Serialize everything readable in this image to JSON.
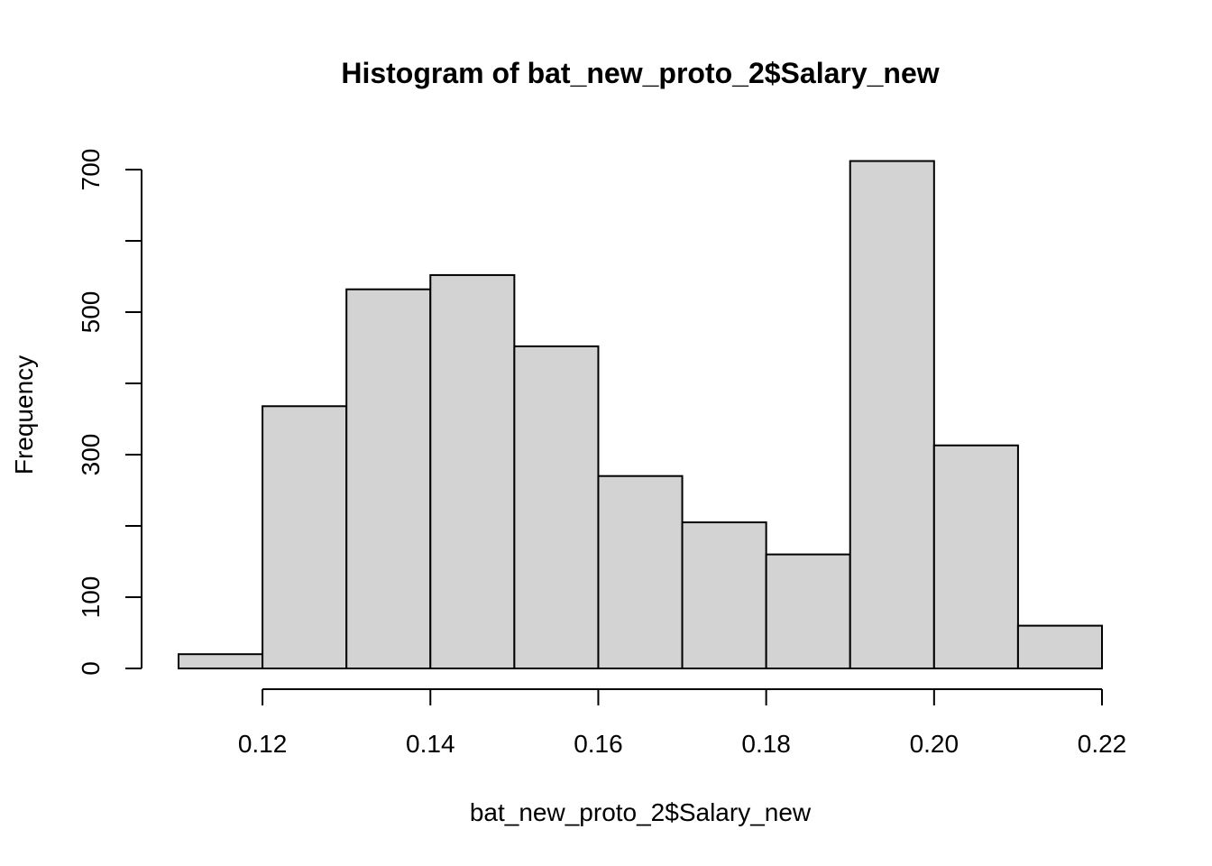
{
  "chart_data": {
    "type": "bar",
    "title": "Histogram of bat_new_proto_2$Salary_new",
    "xlabel": "bat_new_proto_2$Salary_new",
    "ylabel": "Frequency",
    "bins": [
      {
        "from": 0.11,
        "to": 0.12,
        "count": 20
      },
      {
        "from": 0.12,
        "to": 0.13,
        "count": 368
      },
      {
        "from": 0.13,
        "to": 0.14,
        "count": 532
      },
      {
        "from": 0.14,
        "to": 0.15,
        "count": 552
      },
      {
        "from": 0.15,
        "to": 0.16,
        "count": 452
      },
      {
        "from": 0.16,
        "to": 0.17,
        "count": 270
      },
      {
        "from": 0.17,
        "to": 0.18,
        "count": 205
      },
      {
        "from": 0.18,
        "to": 0.19,
        "count": 160
      },
      {
        "from": 0.19,
        "to": 0.2,
        "count": 712
      },
      {
        "from": 0.2,
        "to": 0.21,
        "count": 313
      },
      {
        "from": 0.21,
        "to": 0.22,
        "count": 60
      }
    ],
    "xlim": [
      0.11,
      0.22
    ],
    "ylim": [
      0,
      700
    ],
    "x_ticks": [
      0.12,
      0.14,
      0.16,
      0.18,
      0.2,
      0.22
    ],
    "x_tick_labels": [
      "0.12",
      "0.14",
      "0.16",
      "0.18",
      "0.20",
      "0.22"
    ],
    "y_ticks": [
      0,
      100,
      200,
      300,
      400,
      500,
      600,
      700
    ],
    "y_tick_labels": [
      "0",
      "100",
      "300",
      "500",
      "700"
    ],
    "y_labeled_ticks": [
      0,
      100,
      300,
      500,
      700
    ],
    "grid": false,
    "bar_fill": "#d3d3d3",
    "bar_stroke": "#000000"
  }
}
